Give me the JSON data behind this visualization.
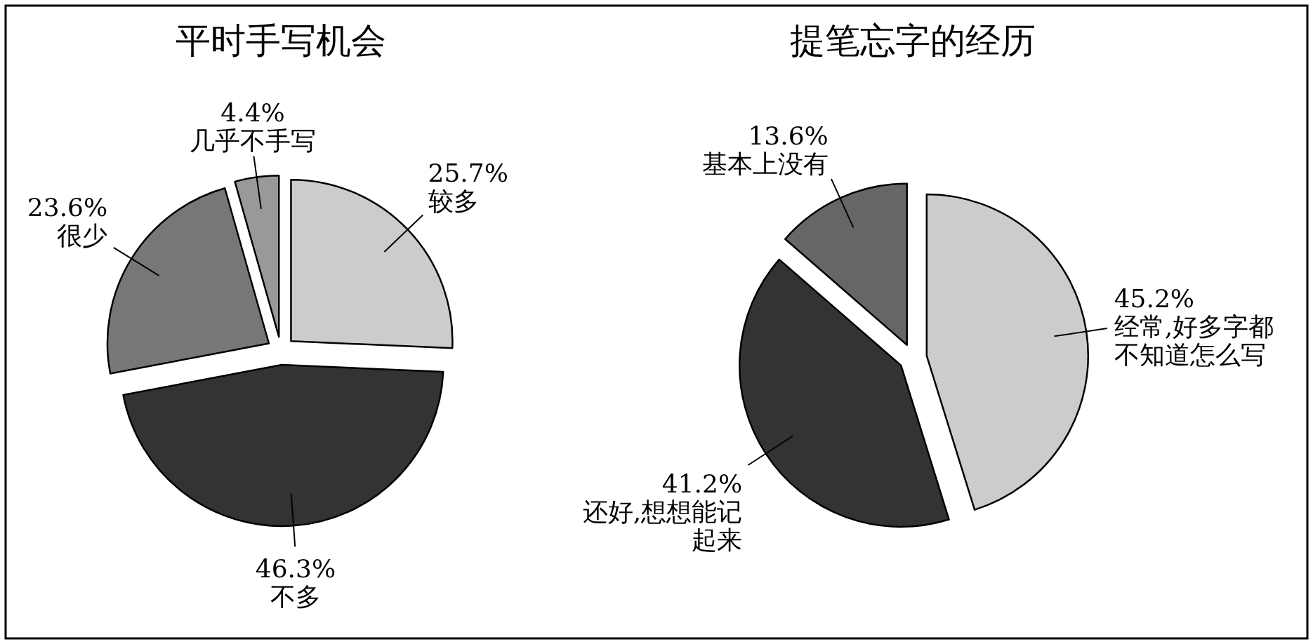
{
  "chart_data": [
    {
      "type": "pie",
      "title": "平时手写机会",
      "categories": [
        "较多",
        "不多",
        "很少",
        "几乎不手写"
      ],
      "values": [
        25.7,
        46.3,
        23.6,
        4.4
      ],
      "value_labels": [
        "25.7%",
        "46.3%",
        "23.6%",
        "4.4%"
      ],
      "colors": [
        "#cccccc",
        "#333333",
        "#777777",
        "#999999"
      ]
    },
    {
      "type": "pie",
      "title": "提笔忘字的经历",
      "categories": [
        "经常,好多字都不知道怎么写",
        "还好,想想能记起来",
        "基本上没有"
      ],
      "values": [
        45.2,
        41.2,
        13.6
      ],
      "value_labels": [
        "45.2%",
        "41.2%",
        "13.6%"
      ],
      "colors": [
        "#cccccc",
        "#333333",
        "#666666"
      ]
    }
  ]
}
